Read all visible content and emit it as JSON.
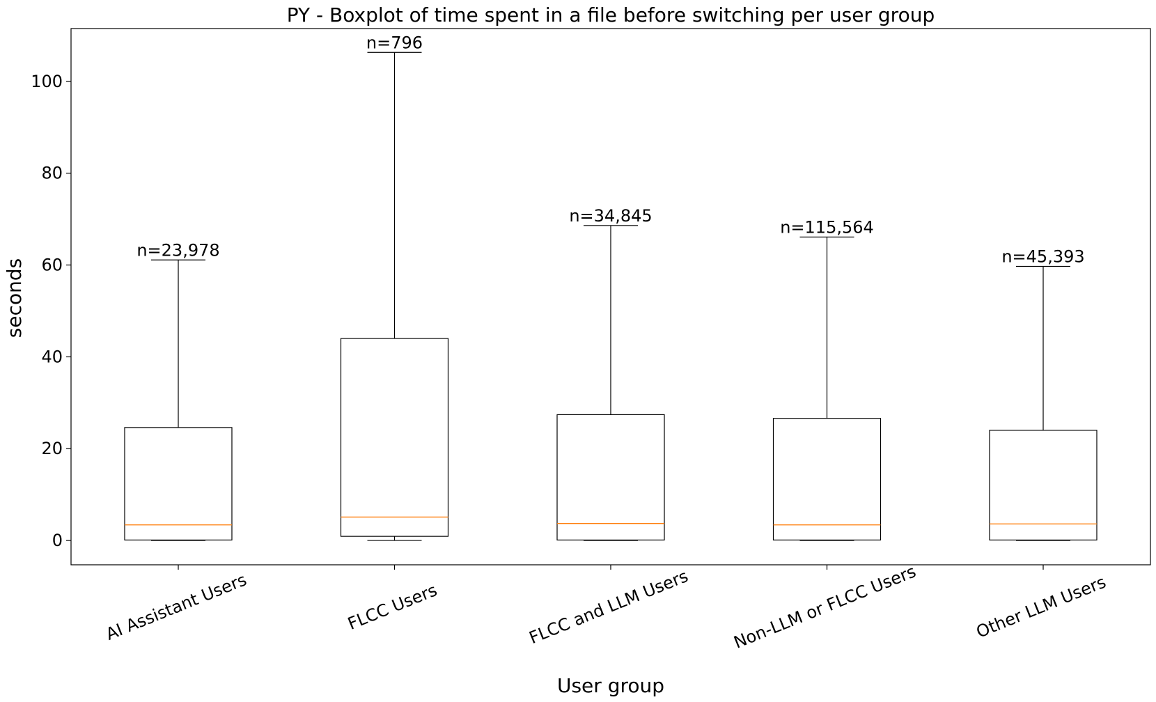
{
  "chart_data": {
    "type": "boxplot",
    "title": "PY - Boxplot of time spent in a file before switching per user group",
    "xlabel": "User group",
    "ylabel": "seconds",
    "ylim": [
      -5.3,
      111.5
    ],
    "yticks": [
      0,
      20,
      40,
      60,
      80,
      100
    ],
    "grid": false,
    "legend": "none",
    "colors": {
      "box": "#000000",
      "median": "#ff7f0e",
      "background": "#ffffff"
    },
    "categories": [
      "AI Assistant Users",
      "FLCC Users",
      "FLCC and LLM Users",
      "Non-LLM or FLCC Users",
      "Other LLM Users"
    ],
    "boxes": [
      {
        "category": "AI Assistant Users",
        "whisker_low": 0.0,
        "q1": 0.1,
        "median": 3.4,
        "q3": 24.6,
        "whisker_high": 61.1,
        "count_label": "n=23,978"
      },
      {
        "category": "FLCC Users",
        "whisker_low": 0.0,
        "q1": 0.9,
        "median": 5.1,
        "q3": 44.0,
        "whisker_high": 106.3,
        "count_label": "n=796"
      },
      {
        "category": "FLCC and LLM Users",
        "whisker_low": 0.0,
        "q1": 0.1,
        "median": 3.7,
        "q3": 27.4,
        "whisker_high": 68.6,
        "count_label": "n=34,845"
      },
      {
        "category": "Non-LLM or FLCC Users",
        "whisker_low": 0.0,
        "q1": 0.1,
        "median": 3.4,
        "q3": 26.6,
        "whisker_high": 66.1,
        "count_label": "n=115,564"
      },
      {
        "category": "Other LLM Users",
        "whisker_low": 0.0,
        "q1": 0.1,
        "median": 3.6,
        "q3": 24.0,
        "whisker_high": 59.7,
        "count_label": "n=45,393"
      }
    ]
  }
}
